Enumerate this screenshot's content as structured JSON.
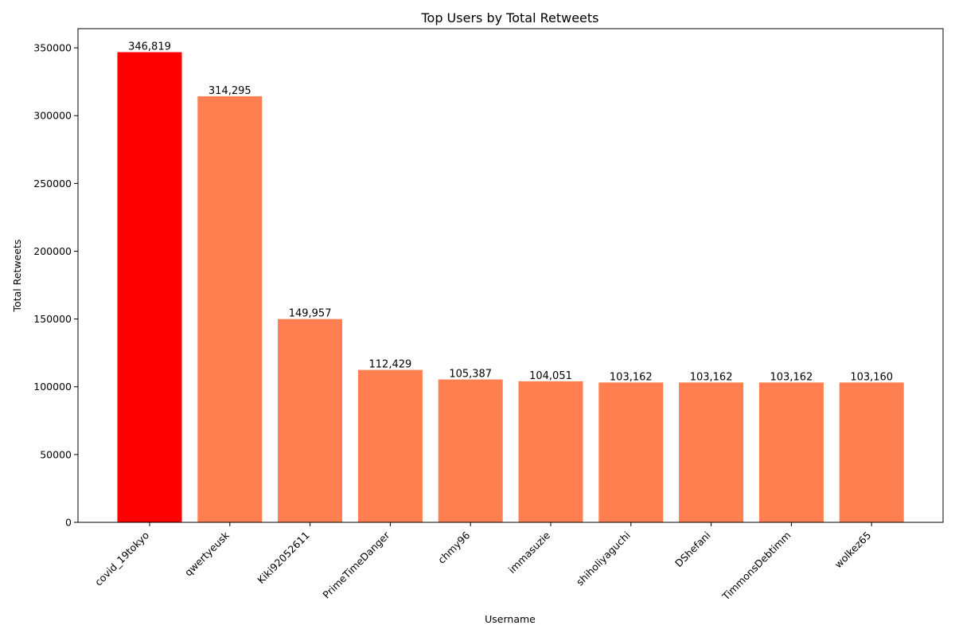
{
  "chart_data": {
    "type": "bar",
    "title": "Top Users by Total Retweets",
    "xlabel": "Username",
    "ylabel": "Total Retweets",
    "categories": [
      "covid_19tokyo",
      "qwertyeusk",
      "Kiki92052611",
      "PrimeTimeDanger",
      "chmy96",
      "immasuzie",
      "shiholiyaguchi",
      "DShefani",
      "TimmonsDebtimm",
      "wolkez65"
    ],
    "values": [
      346819,
      314295,
      149957,
      112429,
      105387,
      104051,
      103162,
      103162,
      103162,
      103160
    ],
    "value_labels": [
      "346,819",
      "314,295",
      "149,957",
      "112,429",
      "105,387",
      "104,051",
      "103,162",
      "103,162",
      "103,162",
      "103,160"
    ],
    "bar_colors": [
      "#ff0000",
      "#ff7f50",
      "#ff7f50",
      "#ff7f50",
      "#ff7f50",
      "#ff7f50",
      "#ff7f50",
      "#ff7f50",
      "#ff7f50",
      "#ff7f50"
    ],
    "ylim": [
      0,
      364160
    ],
    "yticks": [
      0,
      50000,
      100000,
      150000,
      200000,
      250000,
      300000,
      350000
    ],
    "ytick_labels": [
      "0",
      "50000",
      "100000",
      "150000",
      "200000",
      "250000",
      "300000",
      "350000"
    ],
    "grid": false,
    "legend": "none"
  }
}
